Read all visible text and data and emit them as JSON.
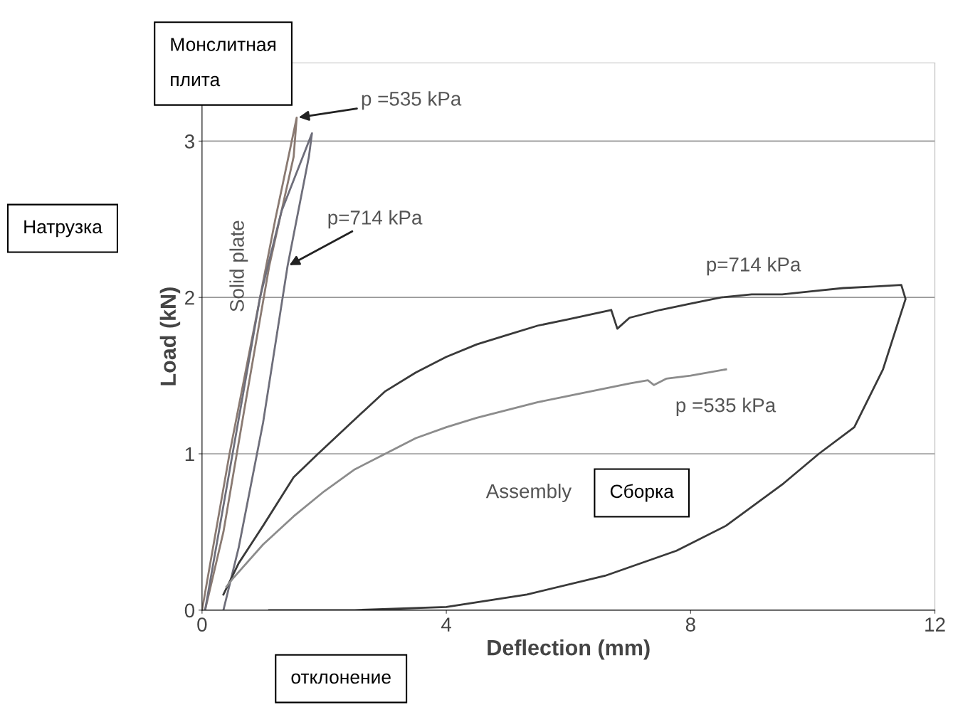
{
  "chart_data": {
    "type": "line",
    "xlabel": "Deflection (mm)",
    "ylabel": "Load (kN)",
    "xlim": [
      0,
      12
    ],
    "ylim": [
      0,
      3.5
    ],
    "xticks": [
      0,
      4,
      8,
      12
    ],
    "yticks": [
      0,
      1,
      2,
      3
    ],
    "grid": "y",
    "legend": false,
    "marker": "none",
    "line_style": "solid",
    "series": [
      {
        "name": "p =535 kPa",
        "color": "#8a7a72",
        "x": [
          0,
          0.45,
          0.9,
          1.2,
          1.55,
          1.5,
          1.1,
          0.7,
          0.35,
          0.05
        ],
        "values": [
          0,
          1.0,
          1.9,
          2.5,
          3.15,
          2.9,
          2.2,
          1.3,
          0.5,
          0
        ]
      },
      {
        "name": "p=714 kPa",
        "color": "#6e6e7a",
        "x": [
          0.05,
          0.5,
          0.95,
          1.3,
          1.8,
          1.75,
          1.4,
          1.0,
          0.6,
          0.35
        ],
        "values": [
          0,
          1.0,
          2.0,
          2.55,
          3.05,
          2.9,
          2.2,
          1.2,
          0.4,
          0
        ]
      },
      {
        "name": "p=714 kPa",
        "color": "#3a3a3a",
        "x": [
          0.35,
          0.6,
          1.0,
          1.5,
          1.9,
          2.5,
          3.0,
          3.5,
          4.0,
          4.5,
          5.0,
          5.5,
          6.0,
          6.7,
          6.8,
          7.0,
          7.5,
          8.0,
          8.5,
          9.0,
          9.5,
          10.0,
          10.5,
          11.0,
          11.45,
          11.52,
          11.15,
          10.68,
          10.1,
          9.52,
          8.58,
          7.77,
          6.6,
          5.32,
          4.0,
          2.5,
          1.1
        ],
        "values": [
          0.1,
          0.3,
          0.54,
          0.85,
          1.0,
          1.22,
          1.4,
          1.52,
          1.62,
          1.7,
          1.76,
          1.82,
          1.86,
          1.92,
          1.8,
          1.87,
          1.92,
          1.96,
          2.0,
          2.02,
          2.02,
          2.04,
          2.06,
          2.07,
          2.08,
          1.99,
          1.54,
          1.17,
          1.0,
          0.81,
          0.54,
          0.38,
          0.22,
          0.1,
          0.02,
          0,
          0
        ]
      },
      {
        "name": "p =535 kPa",
        "color": "#8c8c8c",
        "x": [
          0.4,
          0.5,
          1.0,
          1.5,
          2.0,
          2.5,
          3.0,
          3.5,
          4.0,
          4.5,
          5.0,
          5.5,
          6.0,
          6.5,
          7.0,
          7.3,
          7.4,
          7.6,
          8.0,
          8.58
        ],
        "values": [
          0.15,
          0.2,
          0.42,
          0.6,
          0.76,
          0.9,
          1.0,
          1.1,
          1.17,
          1.23,
          1.28,
          1.33,
          1.37,
          1.41,
          1.45,
          1.47,
          1.44,
          1.48,
          1.5,
          1.54
        ]
      }
    ],
    "annotations": [
      "Solid plate",
      "Assembly",
      "Монслитная плита",
      "Натрузка",
      "Сборка",
      "отклонение"
    ]
  }
}
